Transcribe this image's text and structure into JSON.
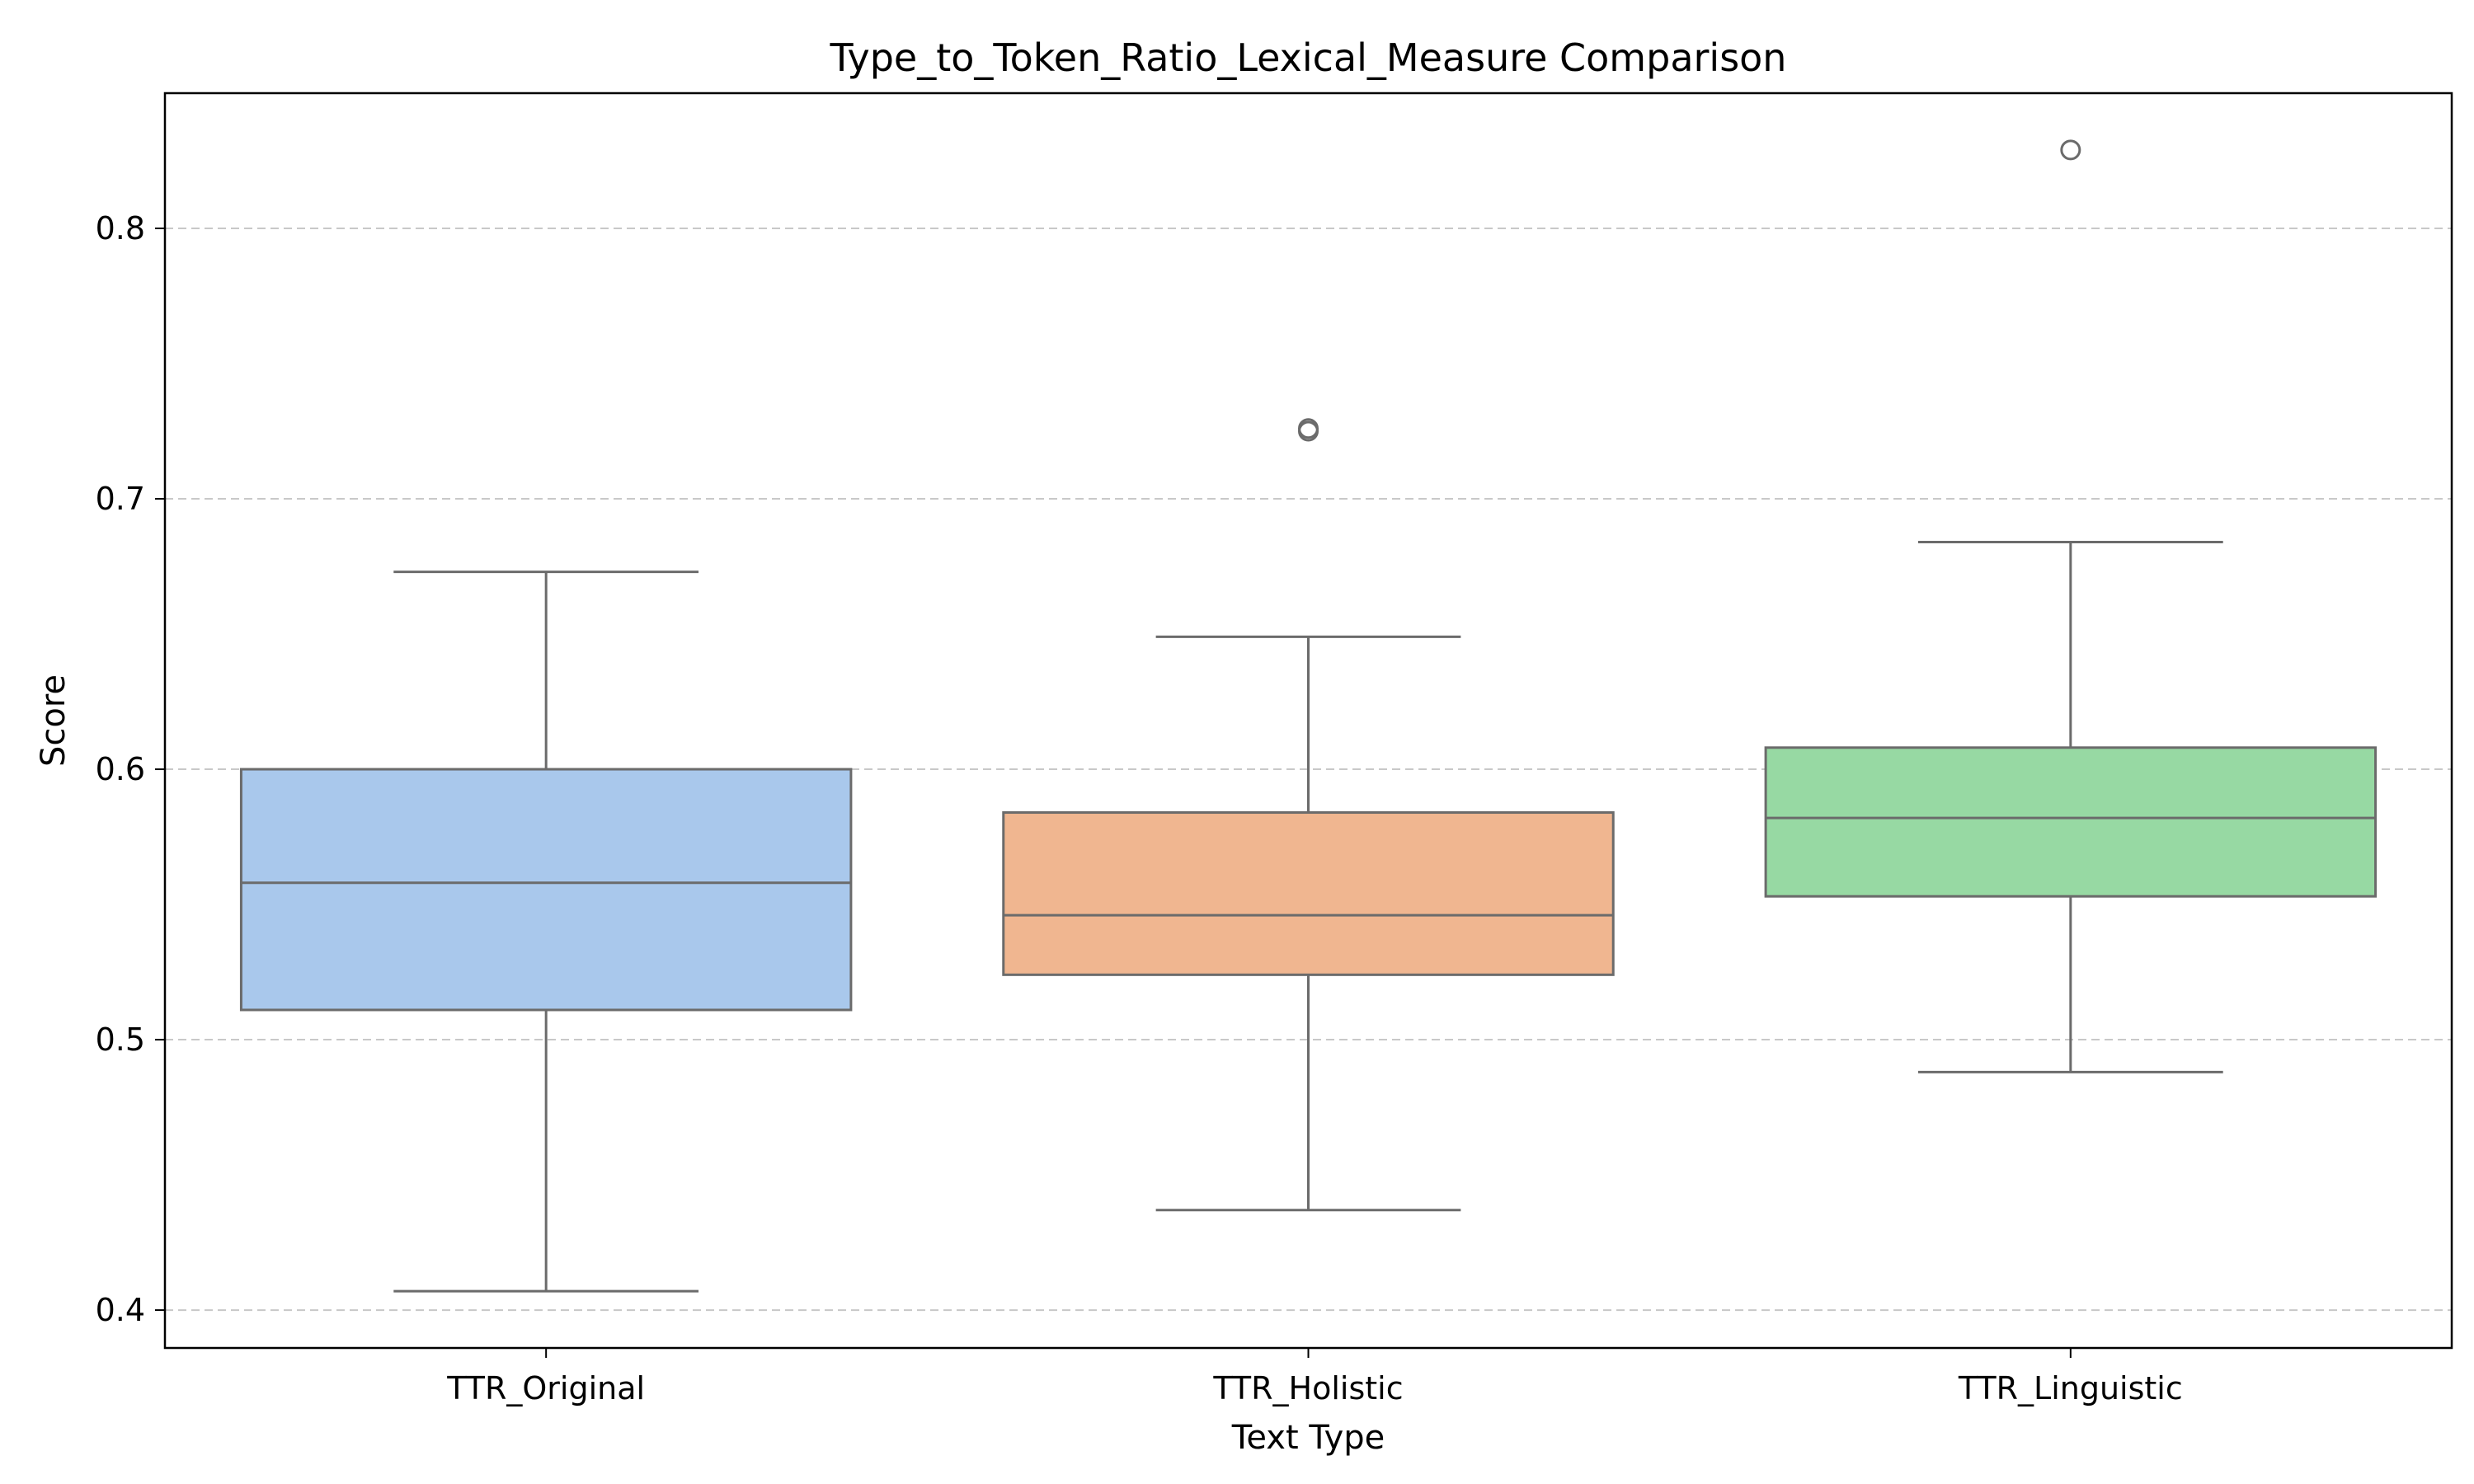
{
  "chart_data": {
    "type": "box",
    "title": "Type_to_Token_Ratio_Lexical_Measure Comparison",
    "xlabel": "Text Type",
    "ylabel": "Score",
    "ylim": [
      0.386,
      0.85
    ],
    "yticks": [
      0.4,
      0.5,
      0.6,
      0.7,
      0.8
    ],
    "ytick_labels": [
      "0.4",
      "0.5",
      "0.6",
      "0.7",
      "0.8"
    ],
    "grid": "y, dashed",
    "categories": [
      "TTR_Original",
      "TTR_Holistic",
      "TTR_Linguistic"
    ],
    "boxes": [
      {
        "category": "TTR_Original",
        "whisker_low": 0.407,
        "q1": 0.511,
        "median": 0.558,
        "q3": 0.6,
        "whisker_high": 0.673,
        "outliers": []
      },
      {
        "category": "TTR_Holistic",
        "whisker_low": 0.437,
        "q1": 0.524,
        "median": 0.546,
        "q3": 0.584,
        "whisker_high": 0.649,
        "outliers": [
          0.725,
          0.726
        ]
      },
      {
        "category": "TTR_Linguistic",
        "whisker_low": 0.488,
        "q1": 0.553,
        "median": 0.582,
        "q3": 0.608,
        "whisker_high": 0.684,
        "outliers": [
          0.829
        ]
      }
    ],
    "colors": {
      "box_fills": [
        "#a9c8ec",
        "#f0b690",
        "#97d9a3"
      ],
      "line": "#6b6b6b",
      "grid": "#c8c8c8",
      "axes": "#000000"
    }
  }
}
